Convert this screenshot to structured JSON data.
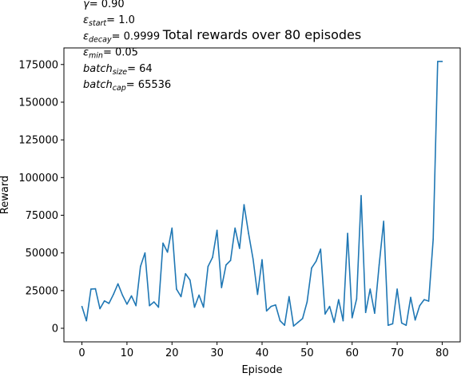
{
  "chart_data": {
    "type": "line",
    "title": "Total rewards over 80 episodes",
    "xlabel": "Episode",
    "ylabel": "Reward",
    "xlim": [
      -4,
      84
    ],
    "ylim": [
      -9000,
      186000
    ],
    "xticks": [
      0,
      10,
      20,
      30,
      40,
      50,
      60,
      70,
      80
    ],
    "yticks": [
      0,
      25000,
      50000,
      75000,
      100000,
      125000,
      150000,
      175000
    ],
    "grid": false,
    "legend": "none",
    "line_color": "#1f77b4",
    "annotations": [
      {
        "symbol": "γ",
        "sub": "",
        "value": "= 0.90"
      },
      {
        "symbol": "ε",
        "sub": "start",
        "value": "= 1.0"
      },
      {
        "symbol": "ε",
        "sub": "decay",
        "value": "= 0.9999"
      },
      {
        "symbol": "ε",
        "sub": "min",
        "value": "= 0.05"
      },
      {
        "symbol": "batch",
        "sub": "size",
        "value": "= 64"
      },
      {
        "symbol": "batch",
        "sub": "cap",
        "value": "= 65536"
      }
    ],
    "series": [
      {
        "x": [
          0,
          1,
          2,
          3,
          4,
          5,
          6,
          7,
          8,
          9,
          10,
          11,
          12,
          13,
          14,
          15,
          16,
          17,
          18,
          19,
          20,
          21,
          22,
          23,
          24,
          25,
          26,
          27,
          28,
          29,
          30,
          31,
          32,
          33,
          34,
          35,
          36,
          37,
          38,
          39,
          40,
          41,
          42,
          43,
          44,
          45,
          46,
          47,
          48,
          49,
          50,
          51,
          52,
          53,
          54,
          55,
          56,
          57,
          58,
          59,
          60,
          61,
          62,
          63,
          64,
          65,
          66,
          67,
          68,
          69,
          70,
          71,
          72,
          73,
          74,
          75,
          76,
          77,
          78,
          79,
          80
        ],
        "values": [
          14500,
          5000,
          26000,
          26200,
          13000,
          18200,
          16500,
          22500,
          29500,
          22000,
          16000,
          21500,
          15000,
          41000,
          50000,
          15000,
          17500,
          14000,
          56500,
          50500,
          66500,
          26000,
          21000,
          36200,
          32000,
          14000,
          22000,
          14000,
          41000,
          47000,
          65000,
          27000,
          42000,
          45000,
          66500,
          53000,
          82000,
          63000,
          46000,
          22500,
          45500,
          11500,
          14500,
          15500,
          5000,
          2000,
          21000,
          1500,
          4000,
          6500,
          17500,
          40000,
          44500,
          52500,
          9500,
          14500,
          4000,
          19000,
          5000,
          63000,
          7000,
          19500,
          88000,
          10500,
          26000,
          10000,
          42000,
          71000,
          2000,
          3000,
          26000,
          3500,
          2000,
          20500,
          5500,
          15000,
          19000,
          18000,
          59000,
          177000,
          177000
        ]
      }
    ]
  }
}
